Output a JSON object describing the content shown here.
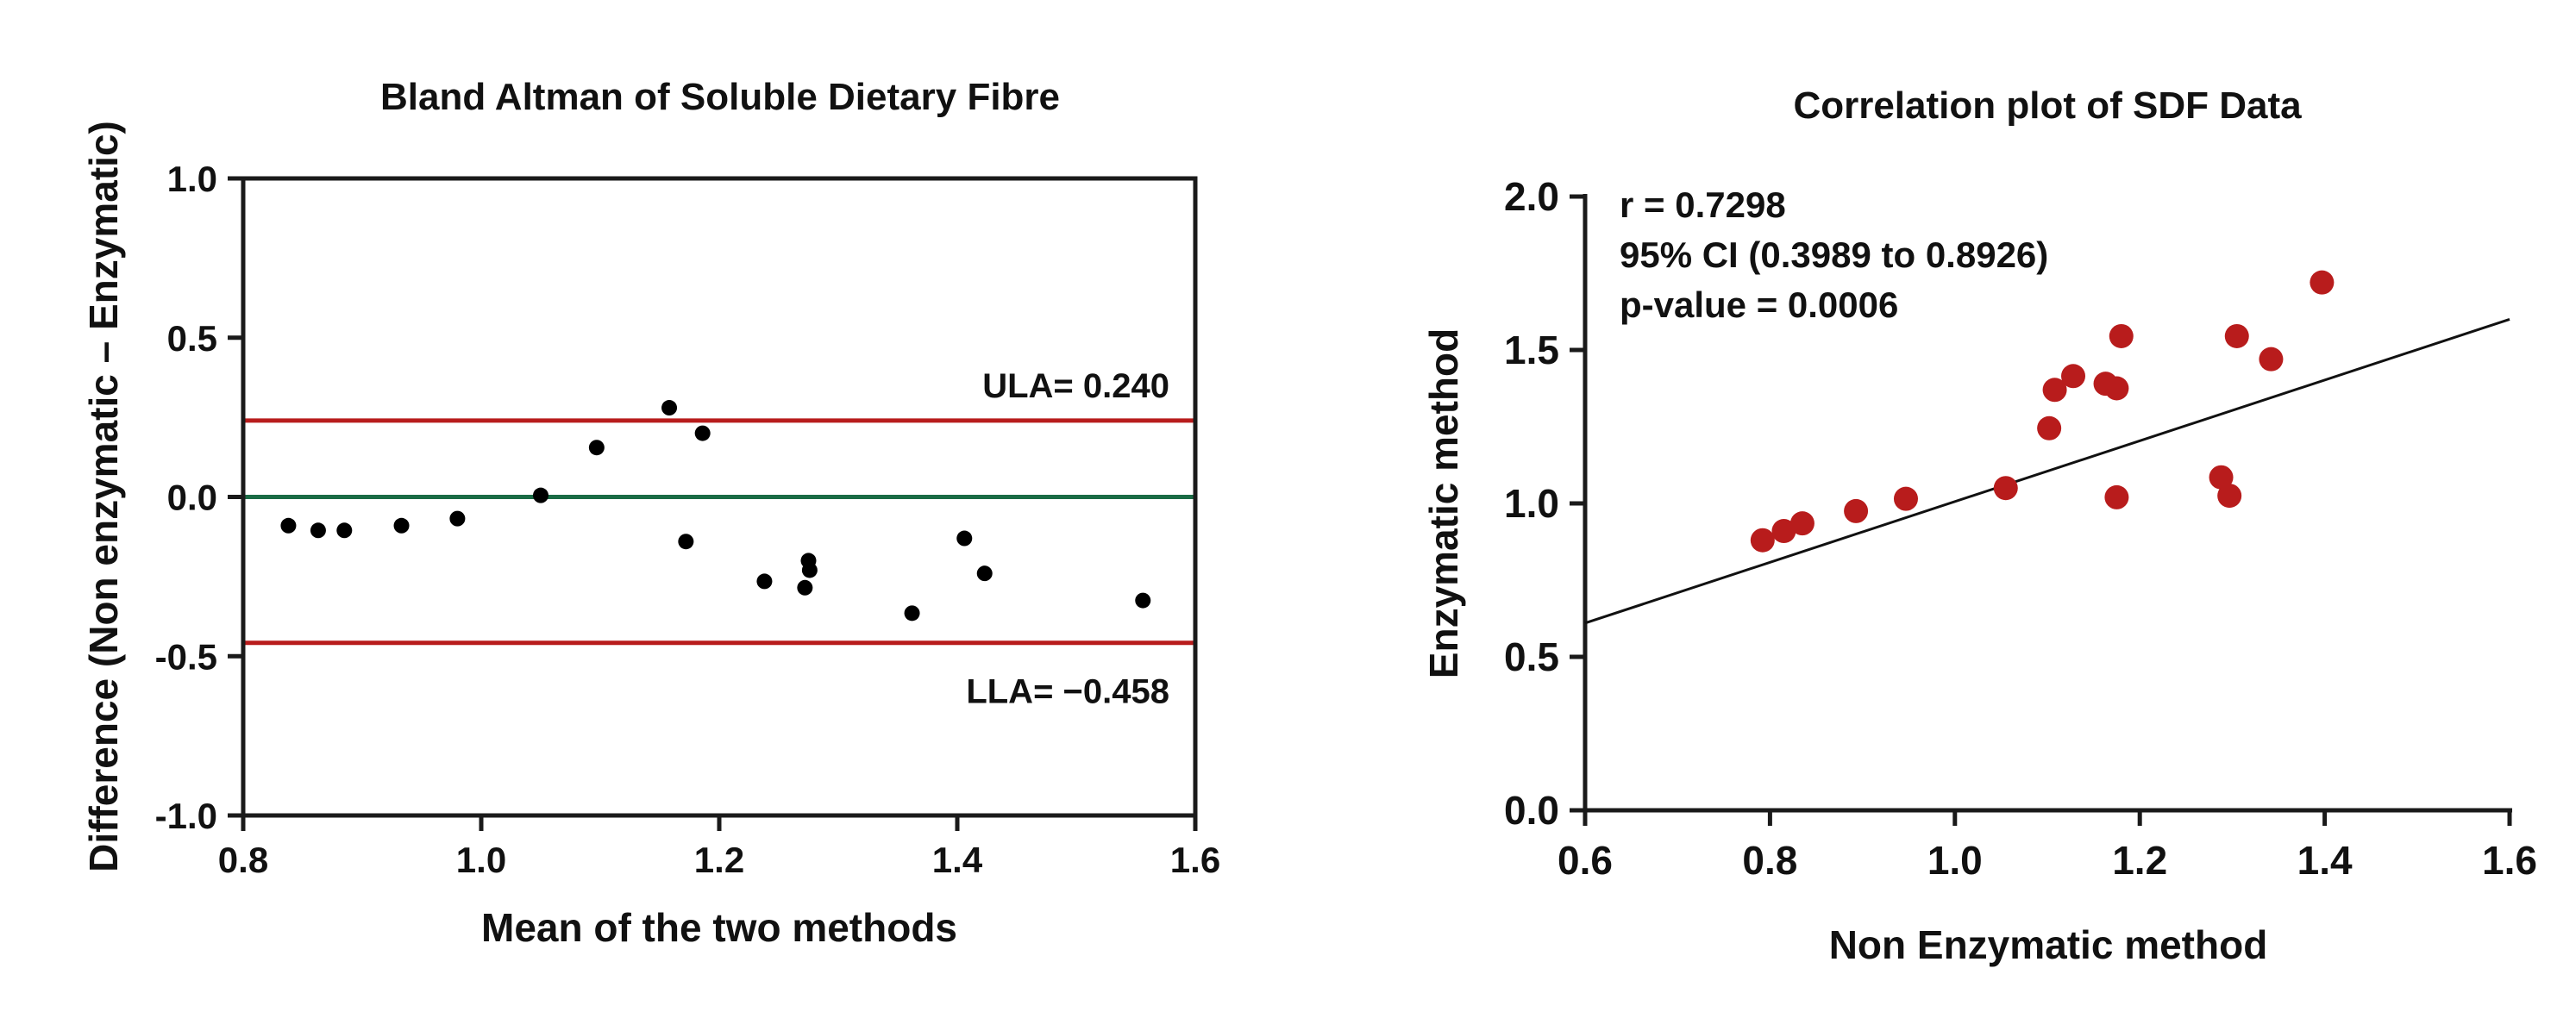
{
  "chart_data": [
    {
      "type": "scatter",
      "title": "Bland Altman of Soluble Dietary Fibre",
      "xlabel": "Mean of the two methods",
      "ylabel": "Difference (Non enzymatic – Enzymatic)",
      "xlim": [
        0.8,
        1.6
      ],
      "ylim": [
        -1.0,
        1.0
      ],
      "x_ticks": [
        "0.8",
        "1.0",
        "1.2",
        "1.4",
        "1.6"
      ],
      "y_ticks": [
        "-1.0",
        "-0.5",
        "0.0",
        "0.5",
        "1.0"
      ],
      "points": [
        {
          "x": 0.838,
          "y": -0.09
        },
        {
          "x": 0.863,
          "y": -0.105
        },
        {
          "x": 0.885,
          "y": -0.105
        },
        {
          "x": 0.933,
          "y": -0.09
        },
        {
          "x": 0.98,
          "y": -0.068
        },
        {
          "x": 1.05,
          "y": 0.005
        },
        {
          "x": 1.097,
          "y": 0.155
        },
        {
          "x": 1.158,
          "y": 0.28
        },
        {
          "x": 1.186,
          "y": 0.2
        },
        {
          "x": 1.172,
          "y": -0.14
        },
        {
          "x": 1.238,
          "y": -0.265
        },
        {
          "x": 1.272,
          "y": -0.285
        },
        {
          "x": 1.275,
          "y": -0.2
        },
        {
          "x": 1.276,
          "y": -0.23
        },
        {
          "x": 1.362,
          "y": -0.365
        },
        {
          "x": 1.406,
          "y": -0.13
        },
        {
          "x": 1.423,
          "y": -0.24
        },
        {
          "x": 1.556,
          "y": -0.325
        }
      ],
      "reference_lines": [
        {
          "name": "ULA",
          "label": "ULA= 0.240",
          "y": 0.24,
          "color": "#b81c1c"
        },
        {
          "name": "bias",
          "label": "",
          "y": 0.0,
          "color": "#1a6b45"
        },
        {
          "name": "LLA",
          "label": "LLA= −0.458",
          "y": -0.458,
          "color": "#b81c1c"
        }
      ],
      "marker_color": "#000000"
    },
    {
      "type": "scatter",
      "title": "Correlation plot of SDF Data",
      "xlabel": "Non Enzymatic method",
      "ylabel": "Enzymatic method",
      "xlim": [
        0.6,
        1.6
      ],
      "ylim": [
        0.0,
        2.0
      ],
      "x_ticks": [
        "0.6",
        "0.8",
        "1.0",
        "1.2",
        "1.4",
        "1.6"
      ],
      "y_ticks": [
        "0.0",
        "0.5",
        "1.0",
        "1.5",
        "2.0"
      ],
      "points": [
        {
          "x": 0.792,
          "y": 0.88
        },
        {
          "x": 0.815,
          "y": 0.91
        },
        {
          "x": 0.835,
          "y": 0.935
        },
        {
          "x": 0.893,
          "y": 0.975
        },
        {
          "x": 0.947,
          "y": 1.015
        },
        {
          "x": 1.055,
          "y": 1.05
        },
        {
          "x": 1.102,
          "y": 1.245
        },
        {
          "x": 1.108,
          "y": 1.37
        },
        {
          "x": 1.128,
          "y": 1.415
        },
        {
          "x": 1.163,
          "y": 1.39
        },
        {
          "x": 1.175,
          "y": 1.375
        },
        {
          "x": 1.175,
          "y": 1.02
        },
        {
          "x": 1.18,
          "y": 1.545
        },
        {
          "x": 1.288,
          "y": 1.085
        },
        {
          "x": 1.297,
          "y": 1.025
        },
        {
          "x": 1.305,
          "y": 1.545
        },
        {
          "x": 1.342,
          "y": 1.47
        },
        {
          "x": 1.397,
          "y": 1.72
        }
      ],
      "fit_line": {
        "x": [
          0.6,
          1.6
        ],
        "y": [
          0.61,
          1.6
        ]
      },
      "marker_color": "#b81c1c",
      "stats": [
        "r = 0.7298",
        "95% CI (0.3989 to 0.8926)",
        "p-value = 0.0006"
      ]
    }
  ]
}
